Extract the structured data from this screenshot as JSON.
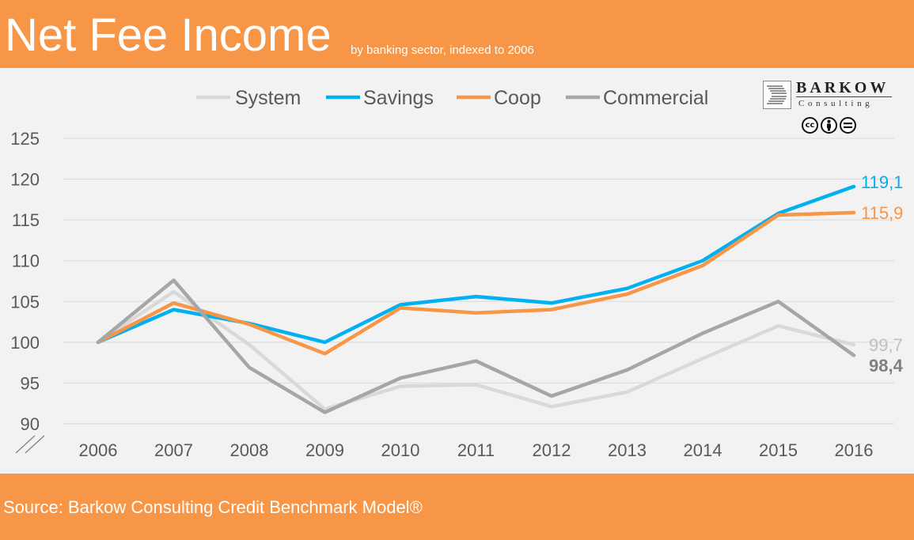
{
  "header": {
    "title": "Net Fee Income",
    "subtitle": "by banking sector, indexed to 2006"
  },
  "logo": {
    "name": "BARKOW",
    "sub": "Consulting",
    "license_badges": [
      "cc",
      "by",
      "nd"
    ]
  },
  "footer": {
    "source": "Source: Barkow Consulting Credit Benchmark Model®"
  },
  "colors": {
    "accent": "#F79646",
    "plot_bg": "#F2F2F2",
    "system": "#D9D9D9",
    "savings": "#00B0F0",
    "coop": "#F79646",
    "commercial": "#A6A6A6",
    "axis_text": "#595959"
  },
  "chart_data": {
    "type": "line",
    "title": "Net Fee Income",
    "subtitle": "by banking sector, indexed to 2006",
    "x": [
      "2006",
      "2007",
      "2008",
      "2009",
      "2010",
      "2011",
      "2012",
      "2013",
      "2014",
      "2015",
      "2016"
    ],
    "ylim": [
      90,
      125
    ],
    "yticks": [
      90,
      95,
      100,
      105,
      110,
      115,
      120,
      125
    ],
    "grid": true,
    "legend": "top",
    "series": [
      {
        "name": "System",
        "color": "#D9D9D9",
        "values": [
          100,
          106.2,
          99.7,
          91.8,
          94.6,
          94.8,
          92.1,
          93.9,
          98.0,
          102.0,
          99.7
        ],
        "end_label": "99,7",
        "end_label_color": "#BFBFBF"
      },
      {
        "name": "Savings",
        "color": "#00B0F0",
        "values": [
          100,
          104.0,
          102.3,
          100.0,
          104.6,
          105.6,
          104.8,
          106.6,
          110.0,
          115.8,
          119.1
        ],
        "end_label": "119,1",
        "end_label_color": "#00B0F0"
      },
      {
        "name": "Coop",
        "color": "#F79646",
        "values": [
          100,
          104.8,
          102.2,
          98.6,
          104.2,
          103.6,
          104.0,
          105.9,
          109.4,
          115.6,
          115.9
        ],
        "end_label": "115,9",
        "end_label_color": "#F79646"
      },
      {
        "name": "Commercial",
        "color": "#A6A6A6",
        "values": [
          100,
          107.6,
          96.9,
          91.4,
          95.6,
          97.7,
          93.4,
          96.6,
          101.1,
          105.0,
          98.4
        ],
        "end_label": "98,4",
        "end_label_color": "#7F7F7F"
      }
    ]
  }
}
